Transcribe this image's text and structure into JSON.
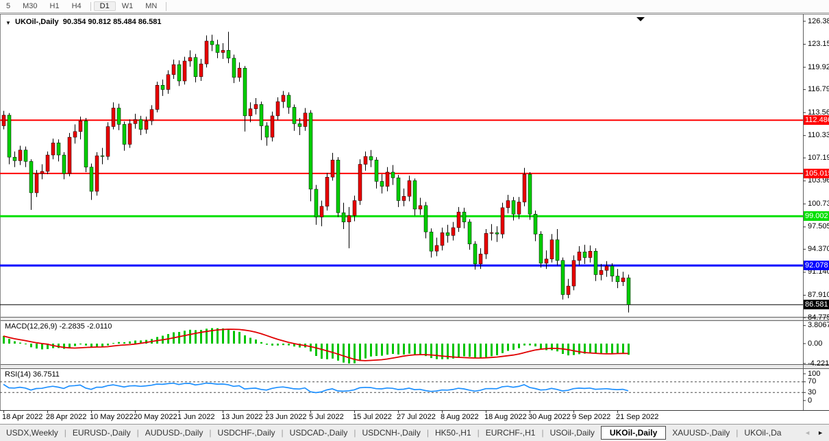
{
  "toolbar": {
    "items": [
      {
        "label": "5"
      },
      {
        "label": "M30"
      },
      {
        "label": "H1"
      },
      {
        "label": "H4",
        "sep_after": true
      },
      {
        "label": "D1",
        "active": true
      },
      {
        "label": "W1"
      },
      {
        "label": "MN",
        "sep_after": true
      }
    ]
  },
  "chart": {
    "title": {
      "arrow": "▼",
      "symbol": "UKOil-,Daily",
      "ohlc": "90.354 90.812 85.484 86.581"
    }
  },
  "chart_data": {
    "type": "candlestick",
    "symbol": "UKOil-",
    "period": "Daily",
    "last_ohlc": {
      "open": 90.354,
      "high": 90.812,
      "low": 85.484,
      "close": 86.581
    },
    "y_axis": {
      "ticks": [
        "126.385",
        "123.155",
        "119.925",
        "116.790",
        "113.560",
        "110.330",
        "107.195",
        "103.965",
        "100.735",
        "97.505",
        "94.370",
        "91.140",
        "87.910",
        "84.775"
      ],
      "min": 84.775,
      "max": 126.385,
      "grid": false
    },
    "x_axis": {
      "labels": [
        "18 Apr 2022",
        "28 Apr 2022",
        "10 May 2022",
        "20 May 2022",
        "1 Jun 2022",
        "13 Jun 2022",
        "23 Jun 2022",
        "5 Jul 2022",
        "15 Jul 2022",
        "27 Jul 2022",
        "8 Aug 2022",
        "18 Aug 2022",
        "30 Aug 2022",
        "9 Sep 2022",
        "21 Sep 2022"
      ],
      "label_candle_indices": [
        0,
        8,
        16,
        24,
        32,
        40,
        48,
        56,
        64,
        72,
        80,
        88,
        96,
        104,
        112
      ]
    },
    "horizontal_lines": [
      {
        "value": 112.486,
        "label": "112.486",
        "color": "#FF0000",
        "thickness": 2
      },
      {
        "value": 105.015,
        "label": "105.015",
        "color": "#FF0000",
        "thickness": 2
      },
      {
        "value": 99.002,
        "label": "99.002",
        "color": "#00E000",
        "thickness": 3
      },
      {
        "value": 92.078,
        "label": "92.078",
        "color": "#0000FF",
        "thickness": 3
      },
      {
        "value": 86.581,
        "label": "86.581",
        "color": "#000000",
        "thickness": 1,
        "role": "current-price"
      }
    ],
    "colors": {
      "up_body": "#E80000",
      "down_body": "#00CD00",
      "wick": "#000000",
      "background": "#FFFFFF"
    },
    "candles": [
      [
        111.7,
        113.8,
        111.2,
        113.2
      ],
      [
        113.2,
        113.5,
        106.3,
        107.3
      ],
      [
        107.3,
        108.1,
        105.9,
        106.8
      ],
      [
        106.8,
        108.9,
        106.2,
        108.3
      ],
      [
        108.3,
        108.8,
        105.9,
        106.7
      ],
      [
        106.7,
        107.0,
        99.9,
        102.3
      ],
      [
        102.3,
        105.5,
        101.7,
        105.0
      ],
      [
        105.0,
        106.3,
        104.2,
        105.3
      ],
      [
        105.3,
        108.1,
        104.9,
        107.6
      ],
      [
        107.6,
        109.9,
        107.0,
        109.3
      ],
      [
        109.3,
        109.8,
        106.7,
        107.6
      ],
      [
        107.6,
        108.0,
        104.2,
        105.0
      ],
      [
        105.0,
        110.7,
        104.6,
        110.1
      ],
      [
        110.1,
        111.9,
        109.2,
        110.9
      ],
      [
        110.9,
        113.0,
        109.8,
        112.4
      ],
      [
        112.4,
        112.8,
        105.2,
        105.9
      ],
      [
        105.9,
        106.4,
        101.3,
        102.5
      ],
      [
        102.5,
        108.0,
        101.9,
        107.5
      ],
      [
        107.5,
        108.6,
        106.3,
        107.4
      ],
      [
        107.4,
        112.2,
        106.9,
        111.6
      ],
      [
        111.6,
        115.0,
        111.2,
        114.2
      ],
      [
        114.2,
        114.8,
        111.1,
        111.9
      ],
      [
        111.9,
        112.3,
        108.2,
        109.1
      ],
      [
        109.1,
        112.6,
        108.6,
        112.0
      ],
      [
        112.0,
        113.4,
        111.3,
        112.6
      ],
      [
        112.6,
        113.1,
        110.4,
        111.2
      ],
      [
        111.2,
        113.0,
        110.6,
        112.4
      ],
      [
        112.4,
        114.6,
        111.8,
        114.0
      ],
      [
        114.0,
        117.9,
        113.6,
        117.4
      ],
      [
        117.4,
        118.2,
        115.9,
        116.8
      ],
      [
        116.8,
        119.5,
        116.2,
        118.9
      ],
      [
        118.9,
        121.0,
        118.3,
        120.3
      ],
      [
        120.3,
        120.9,
        117.3,
        118.0
      ],
      [
        118.0,
        121.4,
        117.5,
        120.8
      ],
      [
        120.8,
        122.3,
        120.0,
        121.3
      ],
      [
        121.3,
        121.8,
        117.8,
        118.6
      ],
      [
        118.6,
        121.1,
        118.0,
        120.4
      ],
      [
        120.4,
        124.4,
        119.9,
        123.6
      ],
      [
        123.6,
        124.5,
        122.2,
        123.1
      ],
      [
        123.1,
        123.8,
        121.2,
        122.0
      ],
      [
        122.0,
        123.3,
        121.1,
        122.3
      ],
      [
        122.3,
        124.9,
        120.5,
        121.2
      ],
      [
        121.2,
        121.7,
        117.7,
        118.5
      ],
      [
        118.5,
        120.6,
        117.9,
        119.8
      ],
      [
        119.8,
        120.1,
        110.9,
        113.1
      ],
      [
        113.1,
        115.0,
        112.2,
        114.1
      ],
      [
        114.1,
        115.6,
        113.3,
        114.7
      ],
      [
        114.7,
        115.1,
        109.7,
        111.7
      ],
      [
        111.7,
        112.2,
        108.9,
        110.1
      ],
      [
        110.1,
        113.7,
        109.5,
        113.1
      ],
      [
        113.1,
        115.7,
        112.5,
        115.1
      ],
      [
        115.1,
        116.6,
        114.2,
        116.0
      ],
      [
        116.0,
        116.4,
        113.4,
        114.3
      ],
      [
        114.3,
        114.7,
        111.0,
        112.0
      ],
      [
        112.0,
        112.8,
        110.4,
        111.6
      ],
      [
        111.6,
        114.2,
        111.0,
        113.5
      ],
      [
        113.5,
        113.9,
        101.1,
        102.8
      ],
      [
        102.8,
        103.4,
        97.8,
        98.9
      ],
      [
        98.9,
        101.2,
        97.6,
        100.4
      ],
      [
        100.4,
        105.1,
        99.8,
        104.5
      ],
      [
        104.5,
        107.9,
        104.0,
        106.9
      ],
      [
        106.9,
        107.3,
        98.9,
        99.5
      ],
      [
        99.5,
        100.9,
        97.2,
        98.2
      ],
      [
        98.2,
        100.3,
        94.5,
        99.1
      ],
      [
        99.1,
        101.9,
        98.3,
        101.2
      ],
      [
        101.2,
        107.0,
        100.6,
        106.3
      ],
      [
        106.3,
        108.1,
        105.4,
        107.4
      ],
      [
        107.4,
        108.3,
        105.9,
        106.9
      ],
      [
        106.9,
        107.3,
        102.9,
        103.9
      ],
      [
        103.9,
        104.9,
        102.2,
        103.2
      ],
      [
        103.2,
        105.9,
        102.5,
        105.2
      ],
      [
        105.2,
        106.2,
        103.4,
        104.4
      ],
      [
        104.4,
        104.8,
        100.3,
        101.2
      ],
      [
        101.2,
        102.9,
        100.4,
        101.8
      ],
      [
        101.8,
        104.7,
        101.1,
        104.0
      ],
      [
        104.0,
        104.3,
        99.1,
        100.0
      ],
      [
        100.0,
        101.6,
        99.2,
        100.5
      ],
      [
        100.5,
        101.0,
        95.9,
        96.8
      ],
      [
        96.8,
        97.3,
        93.2,
        94.1
      ],
      [
        94.1,
        96.0,
        93.4,
        94.9
      ],
      [
        94.9,
        97.4,
        94.2,
        96.7
      ],
      [
        96.7,
        97.8,
        95.3,
        96.3
      ],
      [
        96.3,
        98.2,
        95.6,
        97.4
      ],
      [
        97.4,
        100.3,
        96.8,
        99.6
      ],
      [
        99.6,
        100.2,
        97.3,
        98.2
      ],
      [
        98.2,
        98.6,
        94.3,
        95.1
      ],
      [
        95.1,
        95.5,
        91.5,
        92.3
      ],
      [
        92.3,
        94.5,
        91.6,
        93.7
      ],
      [
        93.7,
        97.2,
        93.0,
        96.6
      ],
      [
        96.6,
        97.9,
        95.6,
        96.7
      ],
      [
        96.7,
        97.6,
        95.4,
        96.5
      ],
      [
        96.5,
        100.9,
        95.9,
        100.2
      ],
      [
        100.2,
        102.0,
        99.4,
        101.2
      ],
      [
        101.2,
        101.7,
        98.4,
        99.3
      ],
      [
        99.3,
        101.7,
        98.6,
        101.0
      ],
      [
        101.0,
        105.8,
        100.4,
        104.9
      ],
      [
        104.9,
        105.2,
        98.5,
        99.3
      ],
      [
        99.3,
        99.8,
        95.5,
        96.5
      ],
      [
        96.5,
        96.9,
        91.8,
        92.4
      ],
      [
        92.4,
        94.2,
        91.6,
        93.0
      ],
      [
        93.0,
        96.5,
        92.5,
        95.7
      ],
      [
        95.7,
        97.2,
        92.1,
        92.8
      ],
      [
        92.8,
        93.2,
        87.3,
        88.0
      ],
      [
        88.0,
        90.2,
        87.5,
        89.2
      ],
      [
        89.2,
        93.5,
        88.6,
        92.8
      ],
      [
        92.8,
        94.8,
        92.1,
        94.0
      ],
      [
        94.0,
        95.0,
        92.3,
        93.2
      ],
      [
        93.2,
        94.9,
        92.5,
        94.1
      ],
      [
        94.1,
        94.5,
        89.9,
        90.8
      ],
      [
        90.8,
        92.3,
        90.0,
        91.4
      ],
      [
        91.4,
        92.7,
        90.5,
        92.0
      ],
      [
        92.0,
        92.4,
        89.8,
        90.6
      ],
      [
        90.6,
        91.6,
        88.9,
        89.8
      ],
      [
        89.8,
        91.2,
        89.2,
        90.354
      ],
      [
        90.354,
        90.812,
        85.484,
        86.581
      ]
    ],
    "indicators": {
      "macd": {
        "name": "MACD(12,26,9)",
        "values_text": "-2.2835 -2.0110",
        "fast": 12,
        "slow": 26,
        "signal": 9,
        "scale_labels": [
          "3.8067",
          "0.00",
          "-4.221"
        ],
        "histogram_color": "#00C400",
        "signal_color": "#E00000"
      },
      "rsi": {
        "name": "RSI(14)",
        "value_text": "36.7511",
        "period": 14,
        "scale_labels": [
          "100",
          "70",
          "30",
          "0"
        ],
        "levels": [
          70,
          30
        ],
        "line_color": "#1E90FF"
      }
    }
  },
  "tabs": {
    "separator_char": "|",
    "items": [
      "USDX,Weekly",
      "EURUSD-,Daily",
      "AUDUSD-,Daily",
      "USDCHF-,Daily",
      "USDCAD-,Daily",
      "USDCNH-,Daily",
      "HK50-,H1",
      "EURCHF-,H1",
      "USOil-,Daily",
      "UKOil-,Daily",
      "XAUUSD-,Daily",
      "UKOil-,Da"
    ],
    "active_index": 9,
    "scroll_left": "◄",
    "scroll_right": "►"
  }
}
